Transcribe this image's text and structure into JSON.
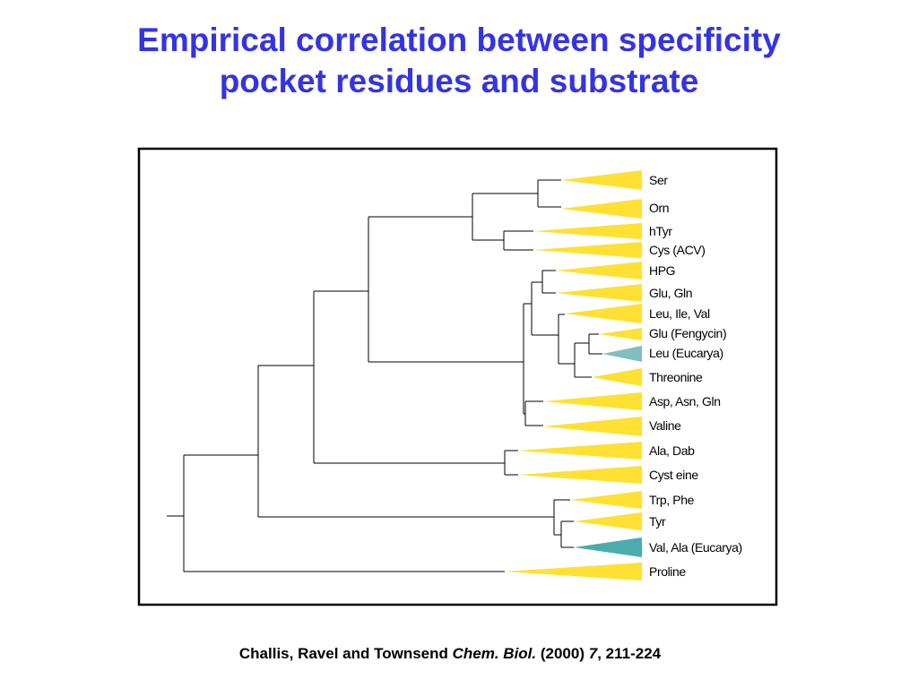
{
  "title": {
    "line1": "Empirical correlation between specificity",
    "line2": "pocket residues and substrate"
  },
  "tree": {
    "leaves": [
      {
        "label": "Ser",
        "color": "#ffe033"
      },
      {
        "label": "Orn",
        "color": "#ffe033"
      },
      {
        "label": "hTyr",
        "color": "#ffe033"
      },
      {
        "label": "Cys (ACV)",
        "color": "#ffe033"
      },
      {
        "label": "HPG",
        "color": "#ffe033"
      },
      {
        "label": "Glu, Gln",
        "color": "#ffe033"
      },
      {
        "label": "Leu, Ile, Val",
        "color": "#ffe033"
      },
      {
        "label": "Glu (Fengycin)",
        "color": "#ffe033"
      },
      {
        "label": "Leu (Eucarya)",
        "color": "#7fbfbf"
      },
      {
        "label": "Threonine",
        "color": "#ffe033"
      },
      {
        "label": "Asp, Asn, Gln",
        "color": "#ffe033"
      },
      {
        "label": "Valine",
        "color": "#ffe033"
      },
      {
        "label": "Ala, Dab",
        "color": "#ffe033"
      },
      {
        "label": "Cyst eine",
        "color": "#ffe033"
      },
      {
        "label": "Trp, Phe",
        "color": "#ffe033"
      },
      {
        "label": "Tyr",
        "color": "#ffe033"
      },
      {
        "label": "Val, Ala (Eucarya)",
        "color": "#4aacac"
      },
      {
        "label": "Proline",
        "color": "#ffe033"
      }
    ]
  },
  "citation": {
    "authors": "Challis, Ravel and Townsend ",
    "journal": "Chem. Biol.",
    "year": " (2000) ",
    "volume": "7",
    "pages": ", 211-224"
  }
}
